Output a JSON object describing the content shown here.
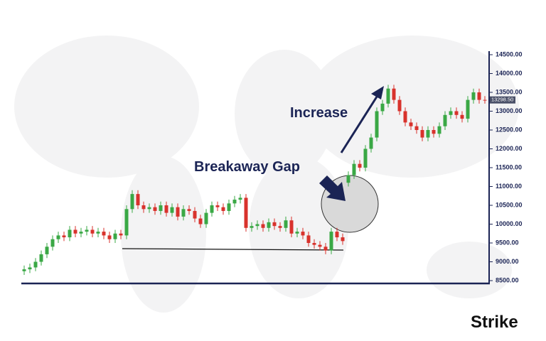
{
  "chart_data": {
    "type": "candlestick",
    "up_color": "#3aa845",
    "down_color": "#d8322c",
    "ylim": [
      8500,
      14500
    ],
    "yticks": [
      {
        "value": 8500,
        "label": "8500.00"
      },
      {
        "value": 9000,
        "label": "9000.00"
      },
      {
        "value": 9500,
        "label": "9500.00"
      },
      {
        "value": 10000,
        "label": "10000.00"
      },
      {
        "value": 10500,
        "label": "10500.00"
      },
      {
        "value": 11000,
        "label": "11000.00"
      },
      {
        "value": 11500,
        "label": "11500.00"
      },
      {
        "value": 12000,
        "label": "12000.00"
      },
      {
        "value": 12500,
        "label": "12500.00"
      },
      {
        "value": 13000,
        "label": "13000.00"
      },
      {
        "value": 13500,
        "label": "13500.00"
      },
      {
        "value": 14000,
        "label": "14000.00"
      },
      {
        "value": 14500,
        "label": "14500.00"
      }
    ],
    "last_price": {
      "value": 13298.5,
      "label": "13298.50"
    },
    "annotations": [
      "Increase",
      "Breakaway Gap"
    ],
    "brand": "Strike",
    "open": [
      8750,
      8800,
      8850,
      9000,
      9200,
      9400,
      9600,
      9700,
      9650,
      9850,
      9750,
      9800,
      9850,
      9750,
      9800,
      9700,
      9600,
      9750,
      9700,
      10400,
      10800,
      10500,
      10400,
      10450,
      10350,
      10500,
      10300,
      10450,
      10200,
      10400,
      10350,
      10150,
      10000,
      10300,
      10500,
      10450,
      10350,
      10550,
      10650,
      10700,
      9900,
      9950,
      10000,
      9900,
      10050,
      9950,
      9900,
      10100,
      9750,
      9800,
      9700,
      9500,
      9450,
      9400,
      9300,
      9800,
      9650,
      11100,
      11300,
      11600,
      11500,
      12000,
      12300,
      13000,
      13200,
      13600,
      13300,
      13000,
      12700,
      12600,
      12500,
      12300,
      12500,
      12400,
      12600,
      12900,
      13000,
      12900,
      12800,
      13300,
      13500,
      13300
    ],
    "high": [
      8900,
      8950,
      9100,
      9300,
      9500,
      9700,
      9800,
      9800,
      9950,
      9950,
      9900,
      9950,
      9950,
      9900,
      9900,
      9800,
      9850,
      9850,
      10500,
      10900,
      10900,
      10600,
      10550,
      10550,
      10600,
      10600,
      10550,
      10550,
      10500,
      10500,
      10450,
      10250,
      10400,
      10600,
      10600,
      10550,
      10650,
      10750,
      10800,
      10800,
      10050,
      10100,
      10100,
      10150,
      10150,
      10050,
      10200,
      10200,
      9900,
      9900,
      9800,
      9600,
      9550,
      9500,
      9900,
      9900,
      9750,
      11400,
      11700,
      11700,
      12100,
      12400,
      13100,
      13300,
      13700,
      13700,
      13400,
      13100,
      12800,
      12700,
      12600,
      12600,
      12600,
      12700,
      13000,
      13100,
      13100,
      13000,
      13400,
      13600,
      13600,
      13400
    ],
    "low": [
      8650,
      8700,
      8750,
      8900,
      9100,
      9300,
      9500,
      9550,
      9550,
      9650,
      9650,
      9700,
      9650,
      9650,
      9600,
      9500,
      9500,
      9600,
      9600,
      10300,
      10400,
      10300,
      10300,
      10250,
      10250,
      10200,
      10200,
      10100,
      10100,
      10250,
      10050,
      9900,
      9900,
      10200,
      10350,
      10250,
      10250,
      10450,
      10550,
      9800,
      9800,
      9850,
      9800,
      9800,
      9850,
      9800,
      9800,
      9650,
      9650,
      9600,
      9400,
      9350,
      9300,
      9200,
      9200,
      9550,
      9450,
      11000,
      11200,
      11400,
      11400,
      11900,
      12200,
      12900,
      13100,
      13200,
      12900,
      12600,
      12500,
      12400,
      12200,
      12200,
      12300,
      12300,
      12500,
      12800,
      12800,
      12700,
      12700,
      13200,
      13200,
      13200
    ],
    "close": [
      8800,
      8850,
      9000,
      9200,
      9400,
      9600,
      9700,
      9650,
      9850,
      9750,
      9800,
      9850,
      9750,
      9800,
      9700,
      9600,
      9750,
      9700,
      10400,
      10800,
      10500,
      10400,
      10450,
      10350,
      10500,
      10300,
      10450,
      10200,
      10400,
      10350,
      10150,
      10000,
      10300,
      10500,
      10450,
      10350,
      10550,
      10650,
      10700,
      9900,
      9950,
      10000,
      9900,
      10050,
      9950,
      9900,
      10100,
      9750,
      9800,
      9700,
      9500,
      9450,
      9400,
      9300,
      9800,
      9650,
      9550,
      11300,
      11600,
      11500,
      12000,
      12300,
      13000,
      13200,
      13600,
      13300,
      13000,
      12700,
      12600,
      12500,
      12300,
      12500,
      12400,
      12600,
      12900,
      13000,
      12900,
      12800,
      13300,
      13500,
      13300,
      13298.5
    ]
  }
}
